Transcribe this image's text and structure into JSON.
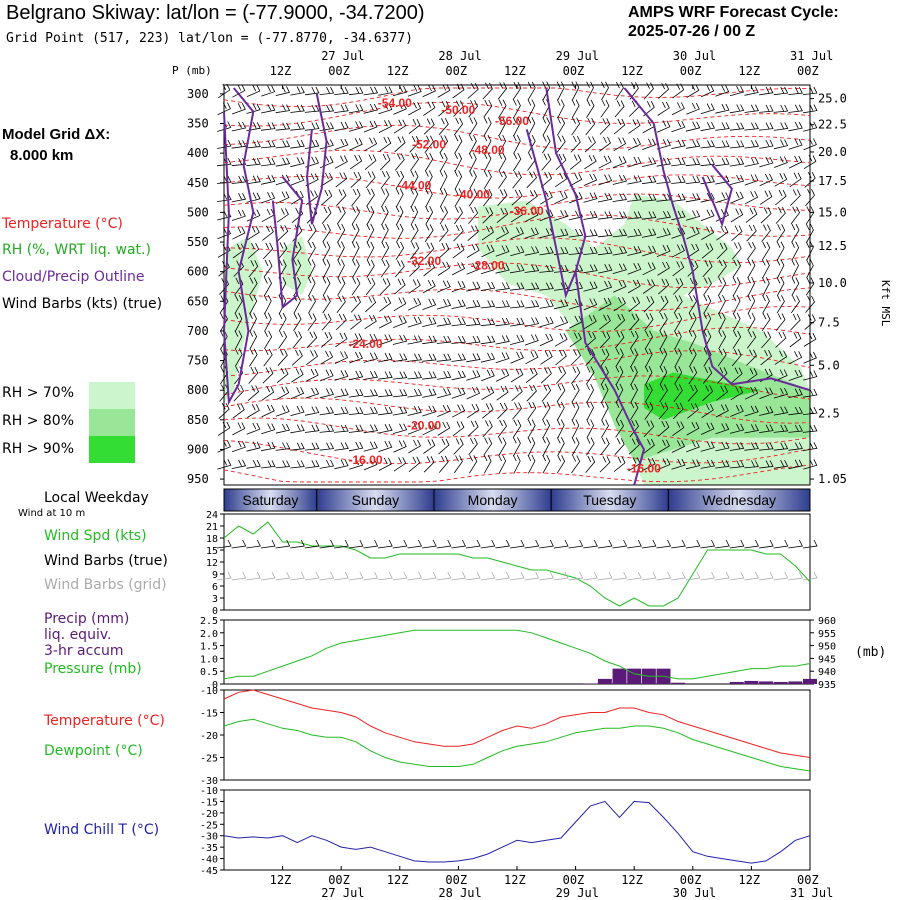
{
  "header": {
    "title": "Belgrano Skiway:  lat/lon = (-77.9000, -34.7200)",
    "subtitle": "Grid Point (517, 223) lat/lon = (-77.8770, -34.6377)",
    "cycle_line1": "AMPS WRF Forecast Cycle:",
    "cycle_line2": "2025-07-26 / 00  Z"
  },
  "sidebar": {
    "model_grid_label": "Model Grid ΔX:",
    "model_grid_value": "8.000 km",
    "legend_temperature": "Temperature (°C)",
    "legend_rh": "RH (%, WRT liq. wat.)",
    "legend_cloud": "Cloud/Precip Outline",
    "legend_wind": "Wind Barbs (kts) (true)",
    "rh_bins": [
      {
        "label": "RH > 70%",
        "color": "#ccf5cc"
      },
      {
        "label": "RH > 80%",
        "color": "#99e699"
      },
      {
        "label": "RH > 90%",
        "color": "#33dd33"
      }
    ],
    "local_weekday": "Local Weekday",
    "wind_at": "Wind at 10 m",
    "wind_spd": "Wind Spd (kts)",
    "wind_barbs_true": "Wind Barbs (true)",
    "wind_barbs_grid": "Wind Barbs (grid)",
    "precip_1": "Precip (mm)",
    "precip_2": "liq. equiv.",
    "precip_3": "3-hr accum",
    "pressure_label": "Pressure (mb)",
    "temp_label": "Temperature (°C)",
    "dewpoint_label": "Dewpoint (°C)",
    "windchill_label": "Wind Chill T (°C)"
  },
  "colors": {
    "temperature": "#ee2222",
    "dewpoint": "#22bb22",
    "pressure": "#22bb22",
    "precip": "#5a1a78",
    "cloud": "#6a2a9a",
    "windchill": "#2222aa",
    "wind_spd": "#22bb22",
    "grid_barbs": "#aaaaaa",
    "weekday_band": "#2e3d8f"
  },
  "chart_data": [
    {
      "type": "heatmap",
      "name": "cross-section",
      "y_label": "P (mb)",
      "y_label_right": "Kft MSL",
      "y_ticks": [
        300,
        350,
        400,
        450,
        500,
        550,
        600,
        650,
        700,
        750,
        800,
        850,
        900,
        950
      ],
      "y_ticks_right": [
        "25.0",
        "22.5",
        "20.0",
        "17.5",
        "15.0",
        "12.5",
        "10.0",
        "7.5",
        "5.0",
        "2.5",
        "1.05"
      ],
      "y_ticks_right_p": [
        308,
        352,
        398,
        447,
        500,
        557,
        619,
        686,
        758,
        839,
        950
      ],
      "x_hours": [
        0,
        120
      ],
      "x_tick_labels_top": [
        "12Z",
        "00Z",
        "12Z",
        "00Z",
        "12Z",
        "00Z",
        "12Z",
        "00Z",
        "12Z",
        "00Z"
      ],
      "x_tick_hours": [
        12,
        24,
        36,
        48,
        60,
        72,
        84,
        96,
        108,
        120
      ],
      "date_labels_top": [
        {
          "text": "27 Jul",
          "h": 24
        },
        {
          "text": "28 Jul",
          "h": 48
        },
        {
          "text": "29 Jul",
          "h": 72
        },
        {
          "text": "30 Jul",
          "h": 96
        },
        {
          "text": "31 Jul",
          "h": 120
        }
      ],
      "temperature_labels": [
        {
          "text": "-54.00",
          "h": 36,
          "p": 315
        },
        {
          "text": "-50.00",
          "h": 49,
          "p": 327
        },
        {
          "text": "-56.00",
          "h": 60,
          "p": 346
        },
        {
          "text": "-52.00",
          "h": 43,
          "p": 385
        },
        {
          "text": "-48.00",
          "h": 55,
          "p": 395
        },
        {
          "text": "-44.00",
          "h": 40,
          "p": 455
        },
        {
          "text": "-40.00",
          "h": 52,
          "p": 470
        },
        {
          "text": "-36.00",
          "h": 63,
          "p": 498
        },
        {
          "text": "-32.00",
          "h": 42,
          "p": 582
        },
        {
          "text": "-28.00",
          "h": 55,
          "p": 590
        },
        {
          "text": "-24.00",
          "h": 30,
          "p": 722
        },
        {
          "text": "-20.00",
          "h": 42,
          "p": 860
        },
        {
          "text": "-16.00",
          "h": 30,
          "p": 918
        },
        {
          "text": "-16.00",
          "h": 87,
          "p": 932
        }
      ]
    },
    {
      "type": "line",
      "name": "wind-speed",
      "y_ticks": [
        0,
        3,
        6,
        9,
        12,
        15,
        18,
        21,
        24
      ],
      "ylim": [
        0,
        24
      ],
      "x": [
        0,
        3,
        6,
        9,
        12,
        15,
        18,
        21,
        24,
        27,
        30,
        33,
        36,
        39,
        42,
        45,
        48,
        51,
        54,
        57,
        60,
        63,
        66,
        69,
        72,
        75,
        78,
        81,
        84,
        87,
        90,
        93,
        96,
        99,
        102,
        105,
        108,
        111,
        114,
        117,
        120
      ],
      "series": [
        {
          "name": "Wind Spd (kts)",
          "values": [
            18,
            21,
            19,
            22,
            17,
            17,
            16,
            16,
            16,
            15,
            13,
            13,
            14,
            14,
            14,
            14,
            14,
            13,
            13,
            12,
            11,
            10,
            10,
            9,
            8,
            6,
            3,
            1,
            3,
            1,
            1,
            3,
            9,
            15,
            15,
            15,
            15,
            14,
            14,
            11,
            7
          ]
        }
      ]
    },
    {
      "type": "bar",
      "name": "precip-pressure",
      "y_ticks": [
        "0",
        "0.5",
        "1.0",
        "1.5",
        "2.0",
        "2.5"
      ],
      "ylim": [
        0,
        2.5
      ],
      "y_ticks_right": [
        935,
        940,
        945,
        950,
        955,
        960
      ],
      "ylim_right": [
        935,
        960
      ],
      "y_label_right": "(mb)",
      "x": [
        0,
        3,
        6,
        9,
        12,
        15,
        18,
        21,
        24,
        27,
        30,
        33,
        36,
        39,
        42,
        45,
        48,
        51,
        54,
        57,
        60,
        63,
        66,
        69,
        72,
        75,
        78,
        81,
        84,
        87,
        90,
        93,
        96,
        99,
        102,
        105,
        108,
        111,
        114,
        117,
        120
      ],
      "precip": [
        0,
        0,
        0,
        0,
        0,
        0,
        0,
        0,
        0,
        0,
        0,
        0,
        0,
        0,
        0,
        0,
        0,
        0,
        0,
        0,
        0,
        0,
        0,
        0,
        0,
        0.02,
        0.2,
        0.6,
        0.6,
        0.6,
        0.6,
        0.05,
        0,
        0,
        0,
        0.08,
        0.12,
        0.1,
        0.08,
        0.1,
        0.2
      ],
      "series": [
        {
          "name": "Pressure (mb)",
          "values": [
            937,
            938,
            938,
            940,
            942,
            944,
            946,
            949,
            951,
            952,
            953,
            954,
            955,
            956,
            956,
            956,
            956,
            956,
            956,
            956,
            956,
            955,
            953,
            951,
            949,
            947,
            944,
            942,
            939,
            938,
            938,
            937,
            937,
            938,
            939,
            940,
            941,
            941,
            942,
            942,
            943
          ]
        }
      ]
    },
    {
      "type": "line",
      "name": "temperature-dewpoint",
      "y_ticks": [
        -10,
        -15,
        -20,
        -25,
        -30
      ],
      "ylim": [
        -30,
        -10
      ],
      "x": [
        0,
        3,
        6,
        9,
        12,
        15,
        18,
        21,
        24,
        27,
        30,
        33,
        36,
        39,
        42,
        45,
        48,
        51,
        54,
        57,
        60,
        63,
        66,
        69,
        72,
        75,
        78,
        81,
        84,
        87,
        90,
        93,
        96,
        99,
        102,
        105,
        108,
        111,
        114,
        117,
        120
      ],
      "series": [
        {
          "name": "Temperature (°C)",
          "values": [
            -12,
            -10.5,
            -10,
            -11,
            -12,
            -13,
            -14,
            -14.5,
            -15,
            -16,
            -18,
            -19.5,
            -20.5,
            -21.5,
            -22,
            -22.5,
            -22.5,
            -22,
            -20.5,
            -19,
            -18,
            -18.5,
            -17.5,
            -16,
            -15.5,
            -15,
            -15,
            -14,
            -14,
            -15,
            -15.5,
            -17,
            -18,
            -19,
            -20,
            -21,
            -22,
            -23,
            -24,
            -24.5,
            -25
          ]
        },
        {
          "name": "Dewpoint (°C)",
          "values": [
            -18,
            -17,
            -16.5,
            -17.5,
            -18.5,
            -19,
            -20,
            -20.5,
            -20.5,
            -21.5,
            -23.5,
            -25,
            -26,
            -26.5,
            -27,
            -27,
            -27,
            -26.5,
            -25,
            -23.5,
            -22.5,
            -22,
            -21.5,
            -20.5,
            -19.5,
            -19,
            -18.5,
            -18.5,
            -18,
            -18,
            -18.5,
            -19.5,
            -21,
            -22,
            -23,
            -24,
            -25,
            -26,
            -27,
            -27.5,
            -28
          ]
        }
      ]
    },
    {
      "type": "line",
      "name": "wind-chill",
      "y_ticks": [
        -10,
        -15,
        -20,
        -25,
        -30,
        -35,
        -40,
        -45
      ],
      "ylim": [
        -45,
        -10
      ],
      "x": [
        0,
        3,
        6,
        9,
        12,
        15,
        18,
        21,
        24,
        27,
        30,
        33,
        36,
        39,
        42,
        45,
        48,
        51,
        54,
        57,
        60,
        63,
        66,
        69,
        72,
        75,
        78,
        81,
        84,
        87,
        90,
        93,
        96,
        99,
        102,
        105,
        108,
        111,
        114,
        117,
        120
      ],
      "series": [
        {
          "name": "Wind Chill T (°C)",
          "values": [
            -30,
            -31,
            -30.5,
            -31,
            -30,
            -33,
            -30,
            -32,
            -35,
            -36,
            -35,
            -37,
            -39,
            -41,
            -41.5,
            -41.5,
            -41,
            -40,
            -38,
            -35,
            -32,
            -33,
            -32,
            -31,
            -24,
            -17,
            -15,
            -22,
            -15,
            -15.5,
            -22,
            -29,
            -37,
            -39,
            -40,
            -41,
            -42,
            -41,
            -37,
            -32,
            -30
          ]
        }
      ]
    }
  ],
  "timeline": {
    "days": [
      "Saturday",
      "Sunday",
      "Monday",
      "Tuesday",
      "Wednesday"
    ],
    "x_tick_labels": [
      "12Z",
      "00Z",
      "12Z",
      "00Z",
      "12Z",
      "00Z",
      "12Z",
      "00Z",
      "12Z",
      "00Z"
    ],
    "date_labels": [
      "27 Jul",
      "28 Jul",
      "29 Jul",
      "30 Jul",
      "31 Jul"
    ]
  }
}
